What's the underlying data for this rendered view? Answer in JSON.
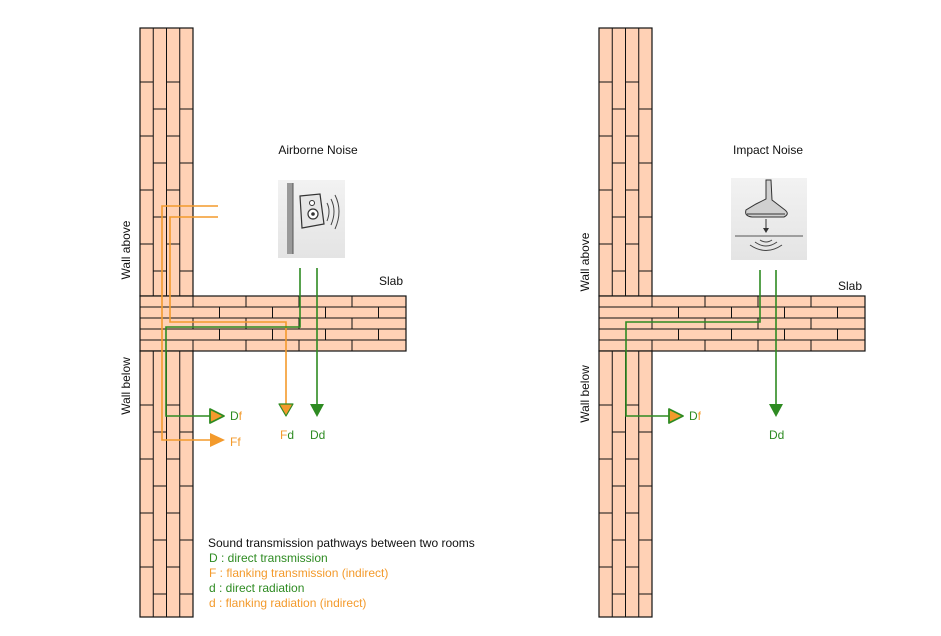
{
  "colors": {
    "brick": "#FFD1B5",
    "mortar": "#111111",
    "green": "#2E8B22",
    "orange": "#F39A2C",
    "text": "#111111"
  },
  "left_panel": {
    "title": "Airborne Noise",
    "slab_label": "Slab",
    "wall_above_label": "Wall above",
    "wall_below_label": "Wall below",
    "icon": "speaker-icon",
    "labels": {
      "Df_upper": "D",
      "Df_lower": "f",
      "Ff_upper": "F",
      "Ff_lower": "f",
      "Fd_upper": "F",
      "Fd_lower": "d",
      "Dd": "Dd"
    }
  },
  "right_panel": {
    "title": "Impact Noise",
    "slab_label": "Slab",
    "wall_above_label": "Wall above",
    "wall_below_label": "Wall below",
    "icon": "footstep-icon",
    "labels": {
      "Df_upper": "D",
      "Df_lower": "f",
      "Dd": "Dd"
    }
  },
  "legend": {
    "title": "Sound transmission pathways between two rooms",
    "items": [
      {
        "text": "D : direct transmission",
        "color": "green"
      },
      {
        "text": "F : flanking transmission (indirect)",
        "color": "orange"
      },
      {
        "text": "d : direct radiation",
        "color": "green"
      },
      {
        "text": "d : flanking radiation (indirect)",
        "color": "orange"
      }
    ]
  }
}
